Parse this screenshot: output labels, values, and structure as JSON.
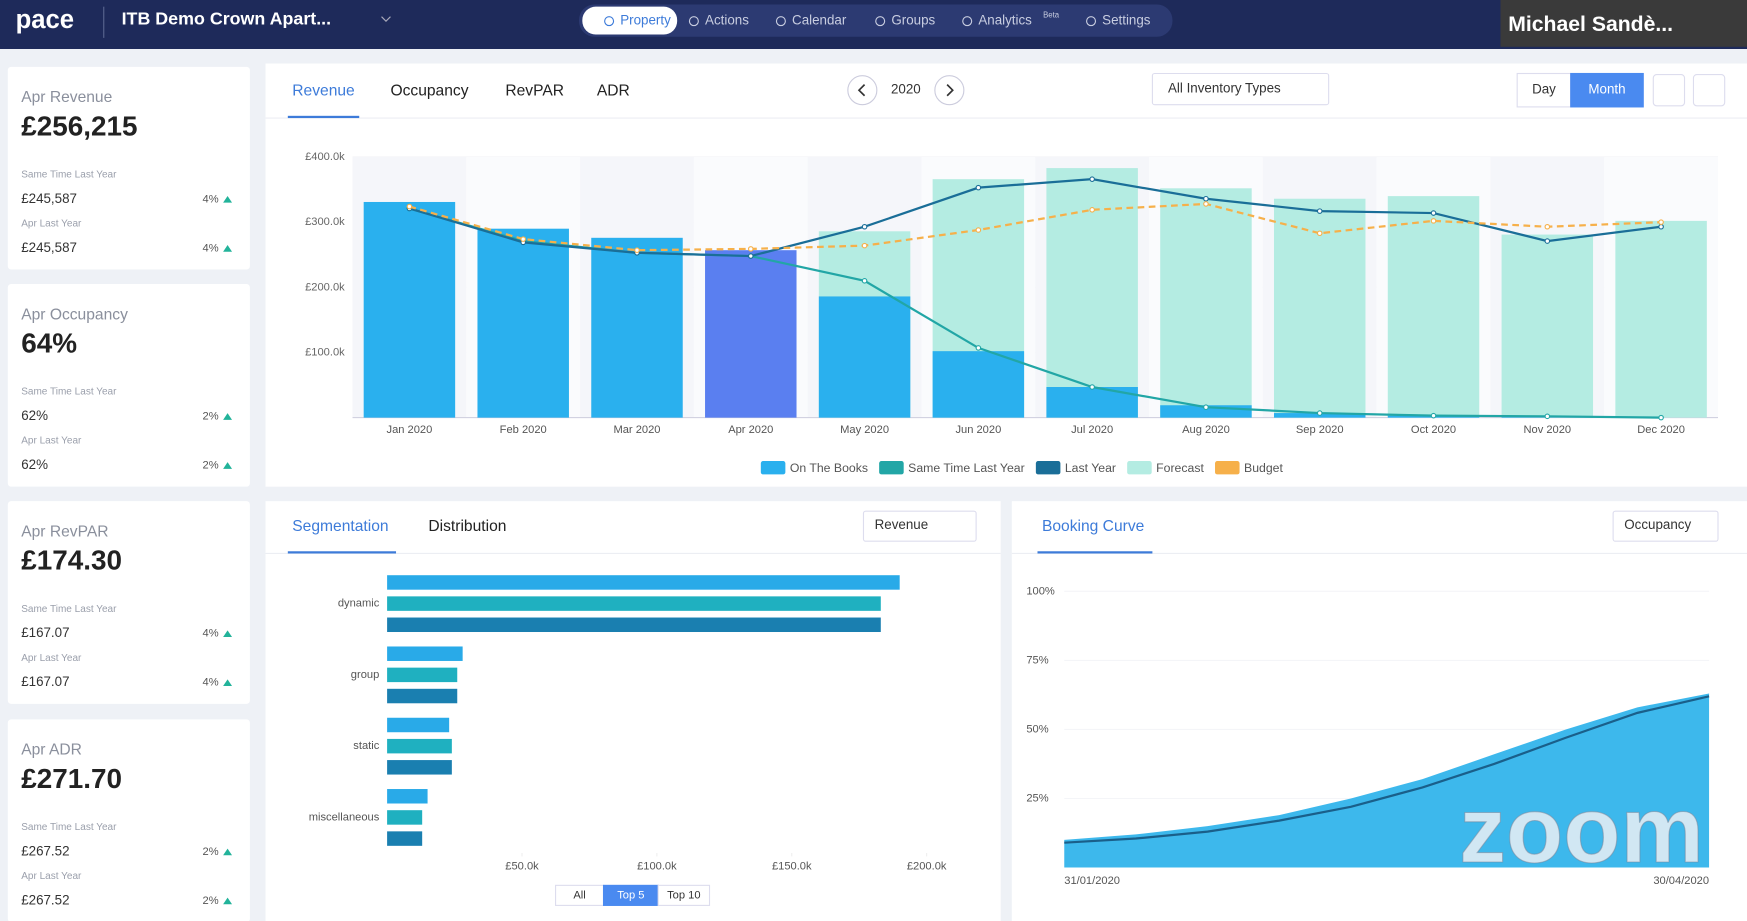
{
  "header": {
    "logo": "pace",
    "property": "ITB Demo Crown Apart...",
    "nav": [
      "Property",
      "Actions",
      "Calendar",
      "Groups",
      "Analytics",
      "Settings"
    ],
    "nav_badge": "Beta",
    "user": "Michael Sandè..."
  },
  "kpis": [
    {
      "title": "Apr Revenue",
      "value": "£256,215",
      "rows": [
        {
          "label": "Same Time Last Year",
          "value": "£245,587",
          "change": "4%"
        },
        {
          "label": "Apr Last Year",
          "value": "£245,587",
          "change": "4%"
        }
      ]
    },
    {
      "title": "Apr Occupancy",
      "value": "64%",
      "rows": [
        {
          "label": "Same Time Last Year",
          "value": "62%",
          "change": "2%"
        },
        {
          "label": "Apr Last Year",
          "value": "62%",
          "change": "2%"
        }
      ]
    },
    {
      "title": "Apr RevPAR",
      "value": "£174.30",
      "rows": [
        {
          "label": "Same Time Last Year",
          "value": "£167.07",
          "change": "4%"
        },
        {
          "label": "Apr Last Year",
          "value": "£167.07",
          "change": "4%"
        }
      ]
    },
    {
      "title": "Apr ADR",
      "value": "£271.70",
      "rows": [
        {
          "label": "Same Time Last Year",
          "value": "£267.52",
          "change": "2%"
        },
        {
          "label": "Apr Last Year",
          "value": "£267.52",
          "change": "2%"
        }
      ]
    }
  ],
  "revenue_panel": {
    "tabs": [
      "Revenue",
      "Occupancy",
      "RevPAR",
      "ADR"
    ],
    "year": "2020",
    "filter": "All Inventory Types",
    "views": [
      "Day",
      "Month"
    ],
    "chart": {
      "type": "bar",
      "categories": [
        "Jan 2020",
        "Feb 2020",
        "Mar 2020",
        "Apr 2020",
        "May 2020",
        "Jun 2020",
        "Jul 2020",
        "Aug 2020",
        "Sep 2020",
        "Oct 2020",
        "Nov 2020",
        "Dec 2020"
      ],
      "ylim": [
        0,
        400000
      ],
      "yticks": [
        {
          "value": 100000,
          "label": "£100.0k"
        },
        {
          "value": 200000,
          "label": "£200.0k"
        },
        {
          "value": 300000,
          "label": "£300.0k"
        },
        {
          "value": 400000,
          "label": "£400.0k"
        }
      ],
      "series": [
        {
          "name": "On The Books",
          "type": "bar",
          "color": "#2ab0ee",
          "colors": [
            "#2ab0ee",
            "#2ab0ee",
            "#2ab0ee",
            "#5a7ff0",
            "#2ab0ee",
            "#2ab0ee",
            "#2ab0ee",
            "#2ab0ee",
            "#2ab0ee",
            "#2ab0ee",
            "#2ab0ee",
            "#2ab0ee"
          ],
          "values": [
            331000,
            290000,
            276000,
            257000,
            186000,
            102000,
            47000,
            19000,
            7000,
            3000,
            1000,
            0
          ]
        },
        {
          "name": "Same Time Last Year",
          "type": "line",
          "color": "#22a6a6",
          "values": [
            321000,
            271000,
            253000,
            248000,
            210000,
            107000,
            47000,
            16000,
            7000,
            3000,
            2000,
            0
          ]
        },
        {
          "name": "Last Year",
          "type": "line",
          "color": "#1a6e98",
          "values": [
            321000,
            269000,
            253000,
            248000,
            293000,
            353000,
            366000,
            336000,
            317000,
            314000,
            271000,
            293000
          ]
        },
        {
          "name": "Forecast",
          "type": "bar",
          "color": "#b4ece2",
          "values": [
            null,
            null,
            null,
            null,
            286000,
            366000,
            383000,
            352000,
            336000,
            340000,
            281000,
            302000
          ]
        },
        {
          "name": "Budget",
          "type": "line",
          "dashed": true,
          "color": "#f6b04a",
          "values": [
            324000,
            274000,
            257000,
            259000,
            264000,
            288000,
            319000,
            328000,
            283000,
            302000,
            293000,
            300000
          ]
        }
      ]
    }
  },
  "segmentation_panel": {
    "tabs": [
      "Segmentation",
      "Distribution"
    ],
    "dropdown": "Revenue",
    "filters": [
      "All",
      "Top 5",
      "Top 10"
    ],
    "chart": {
      "type": "bar",
      "orientation": "horizontal",
      "categories": [
        "dynamic",
        "group",
        "static",
        "miscellaneous"
      ],
      "xlim": [
        0,
        208000
      ],
      "xticks": [
        {
          "value": 50000,
          "label": "£50.0k"
        },
        {
          "value": 100000,
          "label": "£100.0k"
        },
        {
          "value": 150000,
          "label": "£150.0k"
        },
        {
          "value": 200000,
          "label": "£200.0k"
        }
      ],
      "series": [
        {
          "color": "#29aae8",
          "values": [
            190000,
            28000,
            23000,
            15000
          ]
        },
        {
          "color": "#1fb0c0",
          "values": [
            183000,
            26000,
            24000,
            13000
          ]
        },
        {
          "color": "#1a7fb0",
          "values": [
            183000,
            26000,
            24000,
            13000
          ]
        }
      ]
    }
  },
  "booking_panel": {
    "title": "Booking Curve",
    "dropdown": "Occupancy",
    "chart": {
      "type": "area",
      "x": [
        "31/01/2020",
        "10/02/2020",
        "20/02/2020",
        "01/03/2020",
        "11/03/2020",
        "21/03/2020",
        "31/03/2020",
        "10/04/2020",
        "20/04/2020",
        "30/04/2020"
      ],
      "xticks": [
        "31/01/2020",
        "30/04/2020"
      ],
      "ylim": [
        0,
        100
      ],
      "yticks": [
        {
          "value": 25,
          "label": "25%"
        },
        {
          "value": 50,
          "label": "50%"
        },
        {
          "value": 75,
          "label": "75%"
        },
        {
          "value": 100,
          "label": "100%"
        }
      ],
      "series": [
        {
          "type": "area",
          "color": "#3db8ec",
          "values": [
            10,
            12,
            15,
            19,
            25,
            32,
            41,
            50,
            58,
            63
          ]
        },
        {
          "type": "line",
          "color": "#1a5f8a",
          "values": [
            9,
            10.5,
            13,
            17,
            22,
            29,
            37.5,
            47,
            56,
            62
          ]
        }
      ]
    }
  },
  "watermark": "zoom"
}
